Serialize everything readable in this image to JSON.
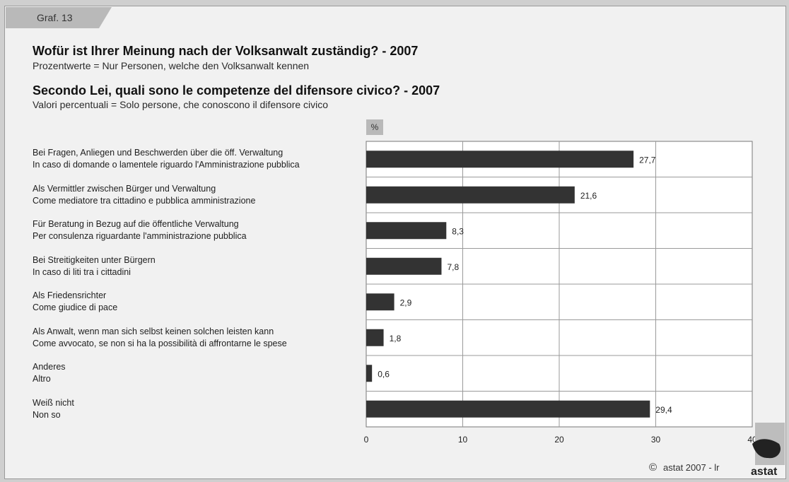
{
  "graf_label": "Graf. 13",
  "title_de": "Wofür ist Ihrer Meinung nach der Volksanwalt zuständig? - 2007",
  "subtitle_de": "Prozentwerte = Nur Personen, welche den Volksanwalt kennen",
  "title_it": "Secondo Lei, quali sono le competenze del difensore civico? - 2007",
  "subtitle_it": "Valori percentuali = Solo persone, che conoscono il difensore civico",
  "unit": "%",
  "copyright": "astat 2007 - lr",
  "copyright_symbol": "©",
  "logo_text": "astat",
  "chart_data": {
    "type": "bar",
    "orientation": "horizontal",
    "categories": [
      {
        "de": "Bei Fragen, Anliegen und Beschwerden über die öff. Verwaltung",
        "it": "In caso di domande o lamentele riguardo l'Amministrazione pubblica"
      },
      {
        "de": "Als Vermittler zwischen Bürger und Verwaltung",
        "it": "Come mediatore tra cittadino e pubblica amministrazione"
      },
      {
        "de": "Für Beratung in Bezug auf die öffentliche Verwaltung",
        "it": "Per consulenza riguardante l'amministrazione pubblica"
      },
      {
        "de": "Bei Streitigkeiten unter Bürgern",
        "it": "In caso di liti tra i cittadini"
      },
      {
        "de": "Als Friedensrichter",
        "it": "Come giudice di pace"
      },
      {
        "de": "Als Anwalt, wenn man sich selbst keinen solchen leisten kann",
        "it": "Come avvocato, se non si ha la possibilità di affrontarne le spese"
      },
      {
        "de": "Anderes",
        "it": "Altro"
      },
      {
        "de": "Weiß nicht",
        "it": "Non so"
      }
    ],
    "values": [
      27.7,
      21.6,
      8.3,
      7.8,
      2.9,
      1.8,
      0.6,
      29.4
    ],
    "value_labels": [
      "27,7",
      "21,6",
      "8,3",
      "7,8",
      "2,9",
      "1,8",
      "0,6",
      "29,4"
    ],
    "xlim": [
      0,
      40
    ],
    "xticks": [
      0,
      10,
      20,
      30,
      40
    ],
    "grid": true,
    "bar_color": "#333333",
    "grid_color": "#9a9a9a"
  }
}
